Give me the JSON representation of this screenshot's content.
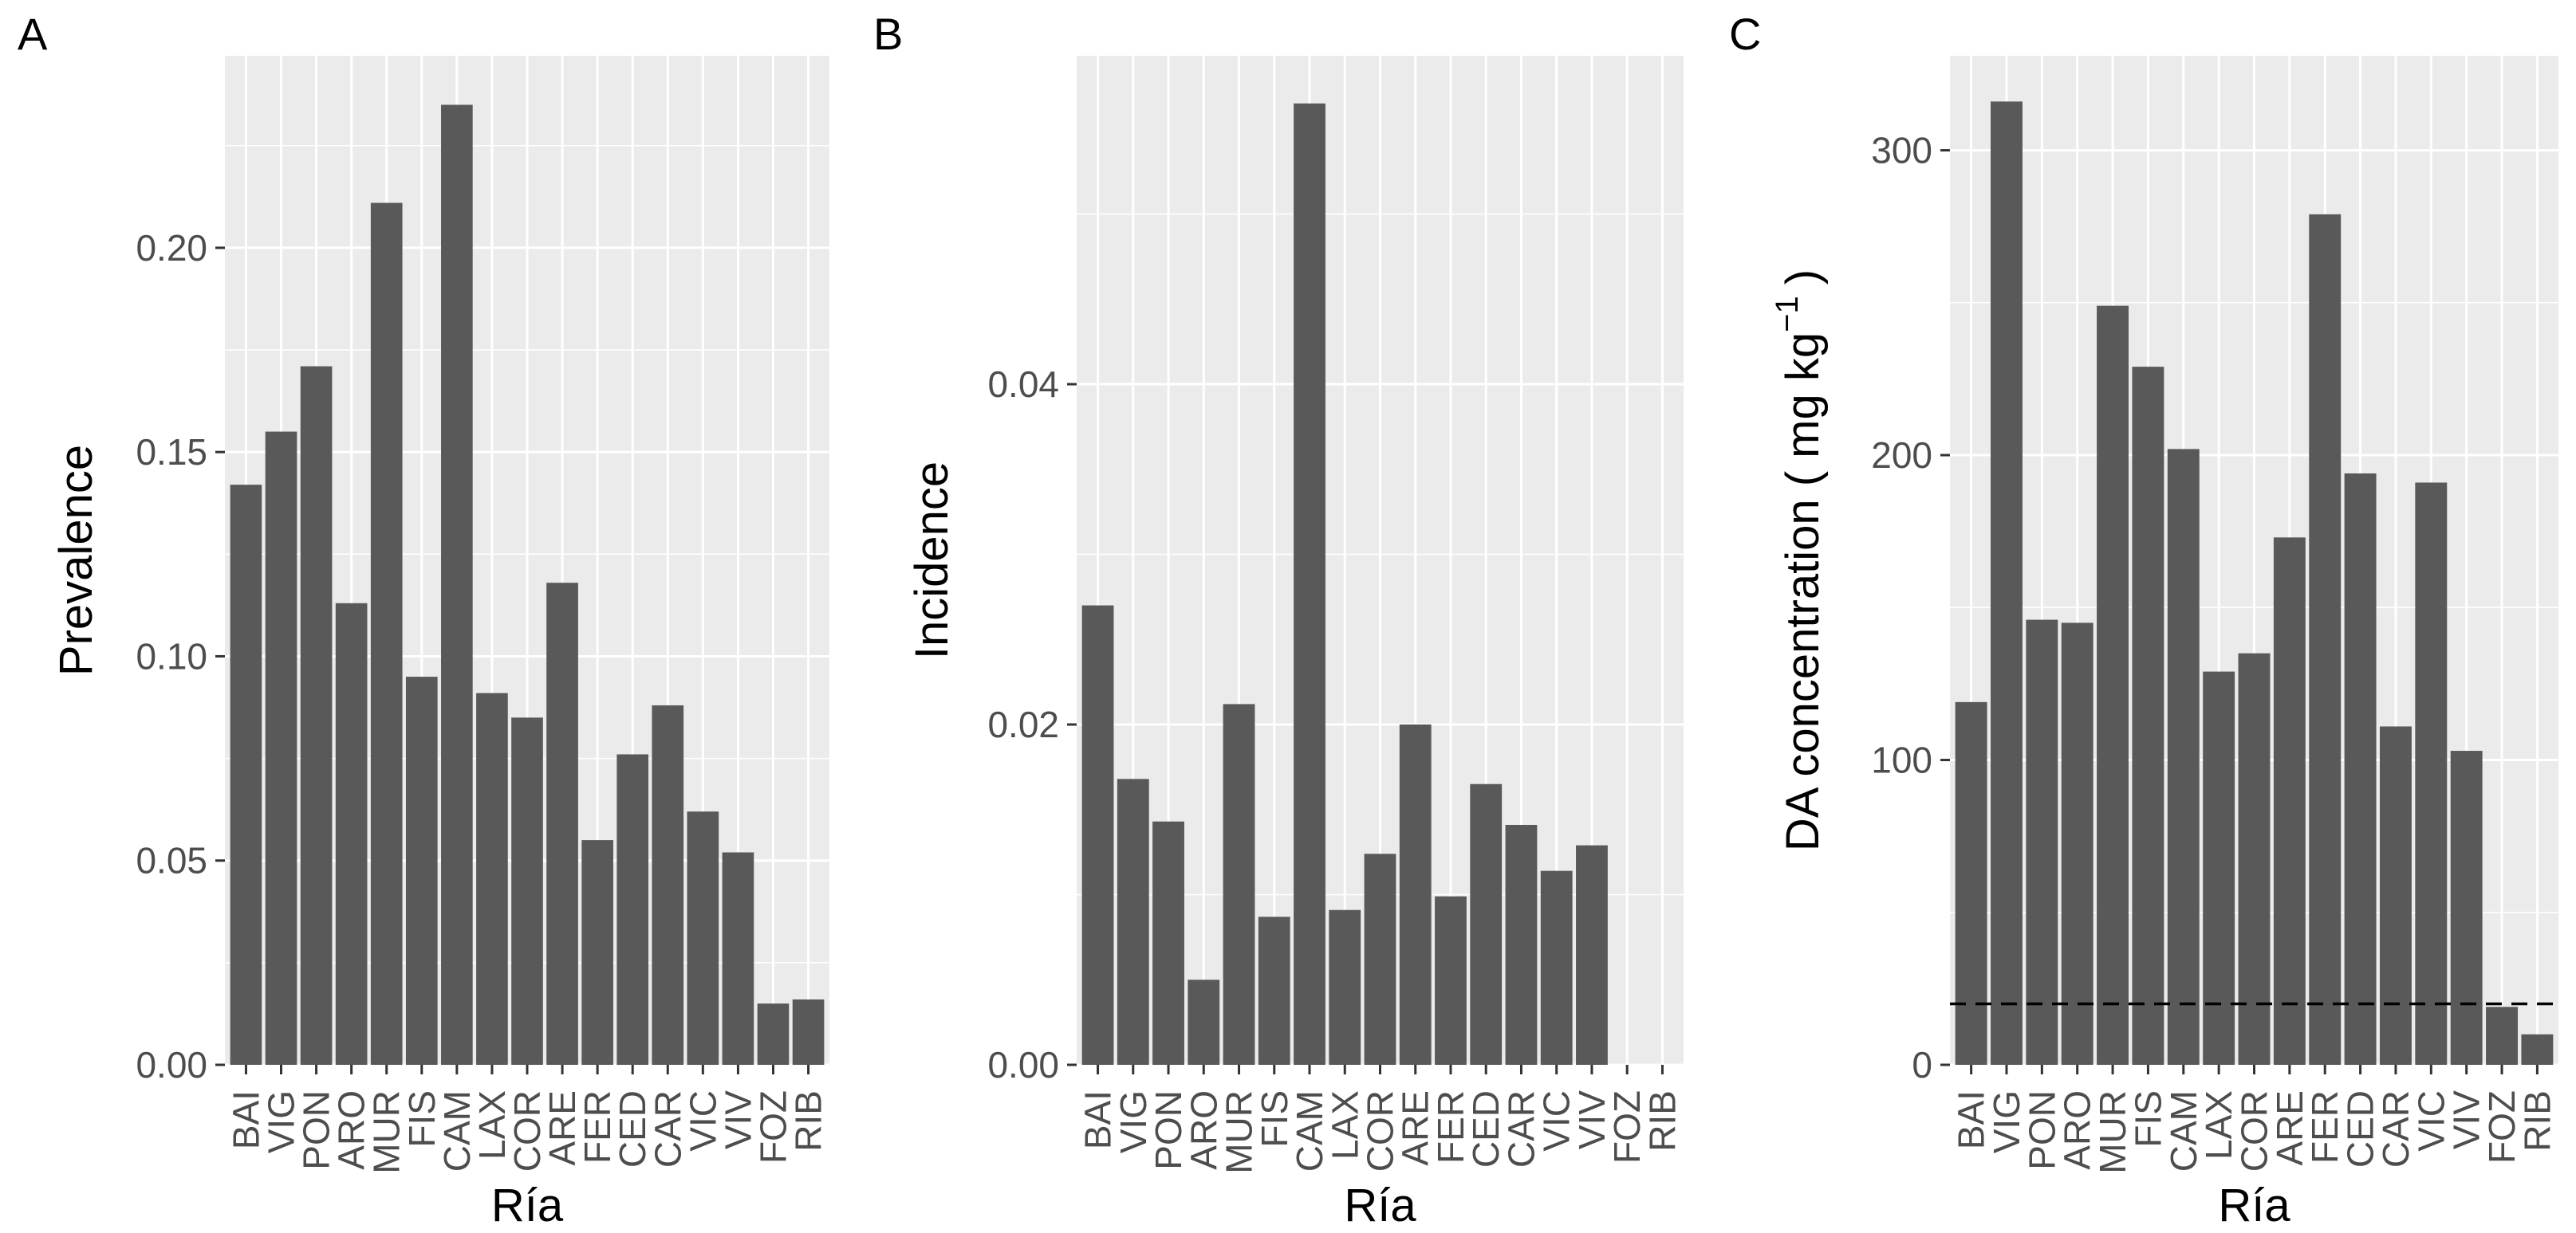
{
  "chart_data": [
    {
      "type": "bar",
      "panel_tag": "A",
      "xlabel": "Ría",
      "ylabel": "Prevalence",
      "ylim": [
        0,
        0.247
      ],
      "yticks": [
        0.0,
        0.05,
        0.1,
        0.15,
        0.2
      ],
      "ytick_labels": [
        "0.00",
        "0.05",
        "0.10",
        "0.15",
        "0.20"
      ],
      "categories": [
        "BAI",
        "VIG",
        "PON",
        "ARO",
        "MUR",
        "FIS",
        "CAM",
        "LAX",
        "COR",
        "ARE",
        "FER",
        "CED",
        "CAR",
        "VIC",
        "VIV",
        "FOZ",
        "RIB"
      ],
      "values": [
        0.142,
        0.155,
        0.171,
        0.113,
        0.211,
        0.095,
        0.235,
        0.091,
        0.085,
        0.118,
        0.055,
        0.076,
        0.088,
        0.062,
        0.052,
        0.015,
        0.016
      ]
    },
    {
      "type": "bar",
      "panel_tag": "B",
      "xlabel": "Ría",
      "ylabel": "Incidence",
      "ylim": [
        0,
        0.0593
      ],
      "yticks": [
        0.0,
        0.02,
        0.04
      ],
      "ytick_labels": [
        "0.00",
        "0.02",
        "0.04"
      ],
      "categories": [
        "BAI",
        "VIG",
        "PON",
        "ARO",
        "MUR",
        "FIS",
        "CAM",
        "LAX",
        "COR",
        "ARE",
        "FER",
        "CED",
        "CAR",
        "VIC",
        "VIV",
        "FOZ",
        "RIB"
      ],
      "values": [
        0.027,
        0.0168,
        0.0143,
        0.005,
        0.0212,
        0.0087,
        0.0565,
        0.0091,
        0.0124,
        0.02,
        0.0099,
        0.0165,
        0.0141,
        0.0114,
        0.0129,
        0,
        0
      ]
    },
    {
      "type": "bar",
      "panel_tag": "C",
      "xlabel": "Ría",
      "ylabel_main": "DA concentration ( mg kg",
      "ylabel_sup": "−1",
      "ylabel_close": ")",
      "ylim": [
        0,
        331
      ],
      "yticks": [
        0,
        100,
        200,
        300
      ],
      "ytick_labels": [
        "0",
        "100",
        "200",
        "300"
      ],
      "reference_line": 20,
      "categories": [
        "BAI",
        "VIG",
        "PON",
        "ARO",
        "MUR",
        "FIS",
        "CAM",
        "LAX",
        "COR",
        "ARE",
        "FER",
        "CED",
        "CAR",
        "VIC",
        "VIV",
        "FOZ",
        "RIB"
      ],
      "values": [
        119,
        316,
        146,
        145,
        249,
        229,
        202,
        129,
        135,
        173,
        279,
        194,
        111,
        191,
        103,
        19,
        10
      ]
    }
  ]
}
